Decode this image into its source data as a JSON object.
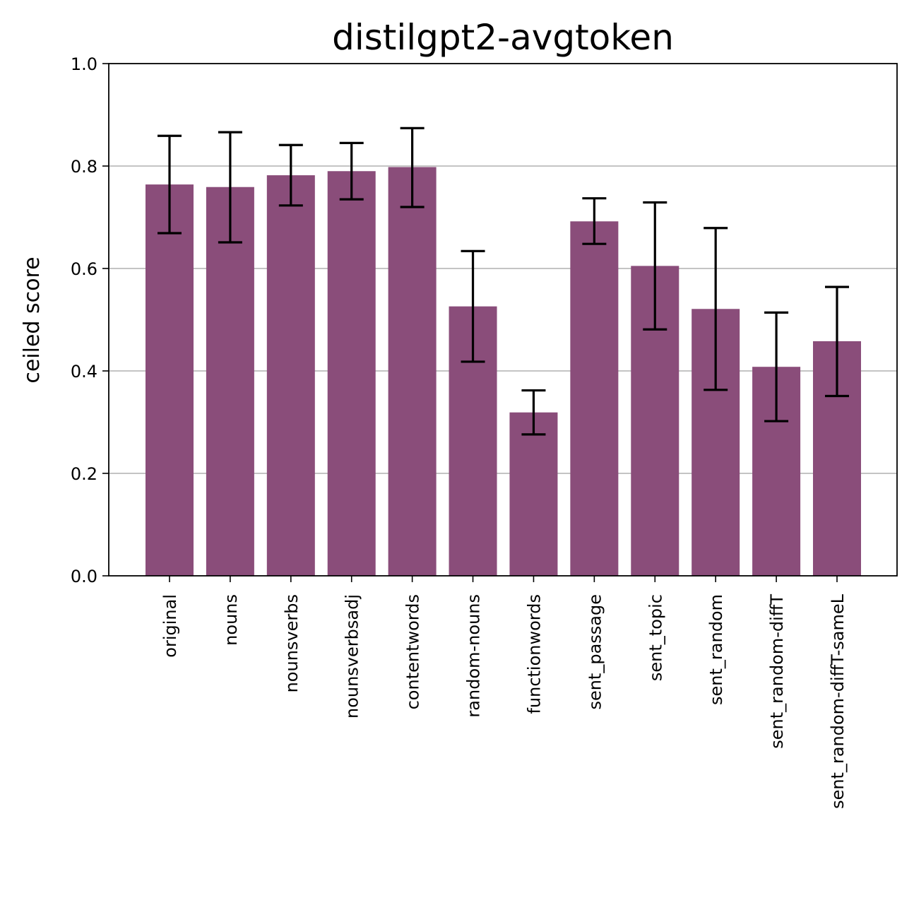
{
  "chart_data": {
    "type": "bar",
    "title": "distilgpt2-avgtoken",
    "xlabel": "",
    "ylabel": "ceiled score",
    "ylim": [
      0,
      1.0
    ],
    "yticks": [
      "0.0",
      "0.2",
      "0.4",
      "0.6",
      "0.8",
      "1.0"
    ],
    "grid": "y-axis",
    "categories": [
      "original",
      "nouns",
      "nounsverbs",
      "nounsverbsadj",
      "contentwords",
      "random-nouns",
      "functionwords",
      "sent_passage",
      "sent_topic",
      "sent_random",
      "sent_random-diffT",
      "sent_random-diffT-sameL"
    ],
    "values": [
      0.764,
      0.759,
      0.782,
      0.79,
      0.798,
      0.526,
      0.319,
      0.692,
      0.605,
      0.521,
      0.408,
      0.458
    ],
    "error_low": [
      0.669,
      0.651,
      0.723,
      0.735,
      0.72,
      0.418,
      0.276,
      0.648,
      0.481,
      0.363,
      0.302,
      0.351
    ],
    "error_high": [
      0.859,
      0.866,
      0.841,
      0.845,
      0.874,
      0.634,
      0.362,
      0.737,
      0.729,
      0.679,
      0.514,
      0.564
    ],
    "bar_color": "#8a4d7a",
    "error_color": "#000000",
    "grid_color": "#b0b0b0"
  }
}
